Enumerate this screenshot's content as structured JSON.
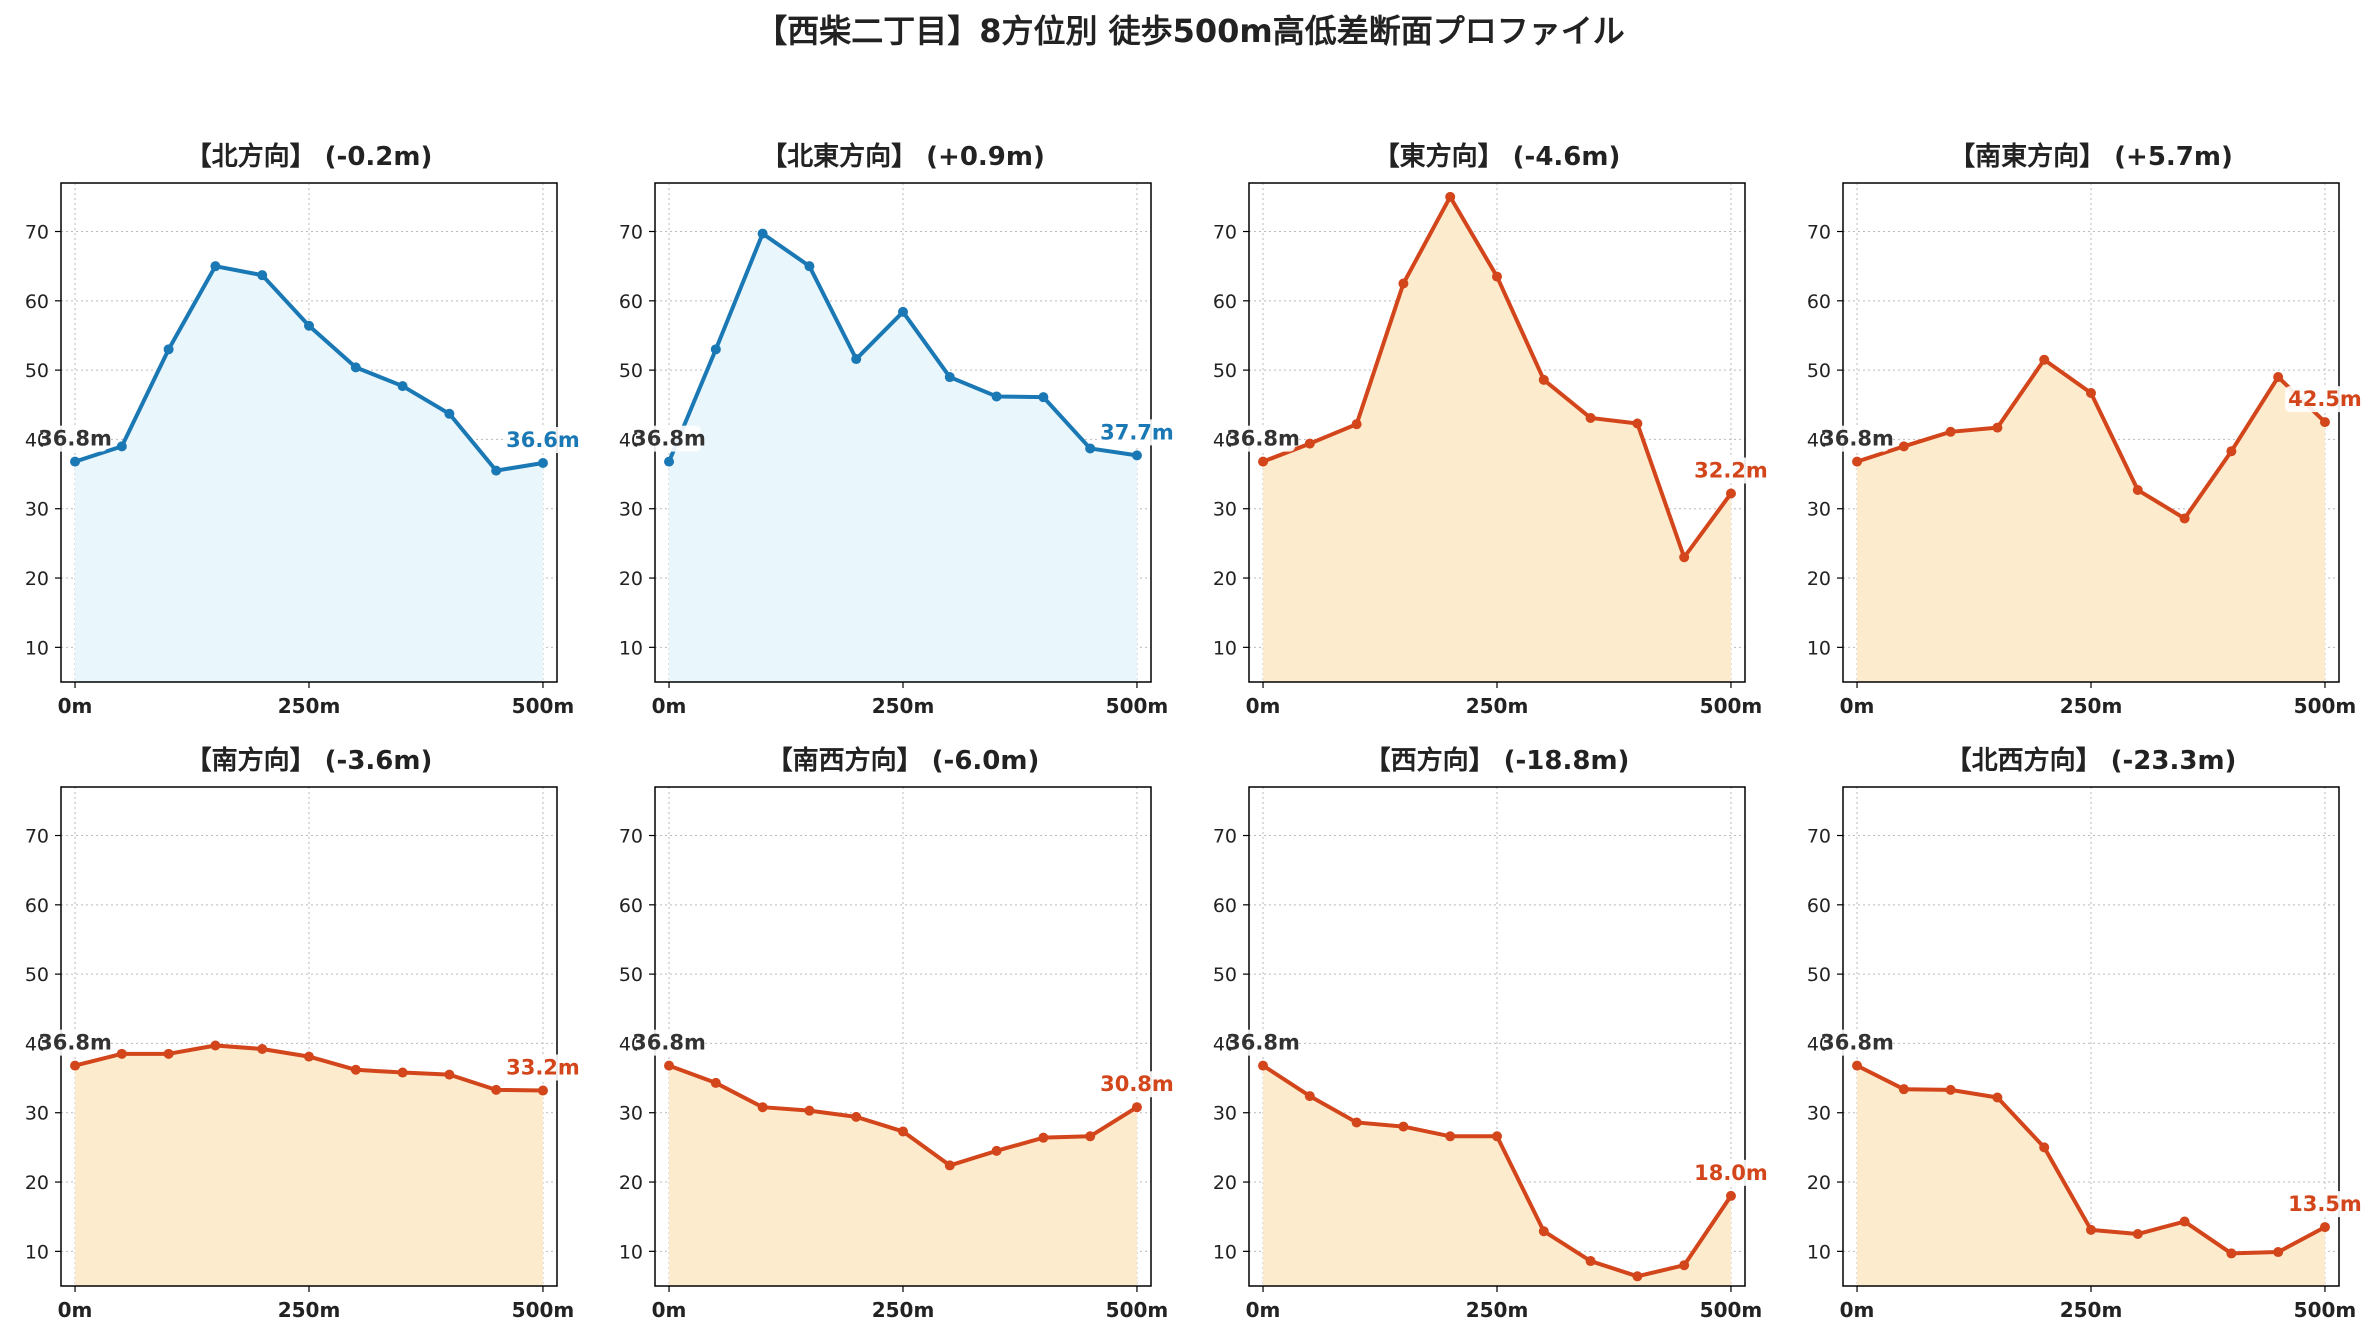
{
  "figure": {
    "title": "【西柴二丁目】8方位別 徒歩500m高低差断面プロファイル"
  },
  "colors": {
    "up_line": "#1a78b4",
    "up_fill": "#e9f6fb",
    "down_line": "#d3451a",
    "down_fill": "#fdebcd",
    "start_label": "#333333",
    "grid": "#bbbbbb",
    "axis": "#000000"
  },
  "chart_data": [
    {
      "type": "area",
      "title": "【北方向】 (-0.2m)",
      "trend": "up",
      "x": [
        0,
        50,
        100,
        150,
        200,
        250,
        300,
        350,
        400,
        450,
        500
      ],
      "y": [
        36.8,
        39.0,
        53.0,
        65.0,
        63.7,
        56.4,
        50.4,
        47.7,
        43.7,
        35.5,
        36.6
      ],
      "start_label": "36.8m",
      "end_label": "36.6m",
      "xticks": [
        "0m",
        "250m",
        "500m"
      ],
      "xtick_values": [
        0,
        250,
        500
      ],
      "yticks": [
        10,
        20,
        30,
        40,
        50,
        60,
        70
      ],
      "ylim": [
        5,
        77
      ],
      "xlim": [
        -15,
        515
      ],
      "grid": true
    },
    {
      "type": "area",
      "title": "【北東方向】 (+0.9m)",
      "trend": "up",
      "x": [
        0,
        50,
        100,
        150,
        200,
        250,
        300,
        350,
        400,
        450,
        500
      ],
      "y": [
        36.8,
        53.0,
        69.7,
        65.0,
        51.6,
        58.4,
        49.0,
        46.2,
        46.1,
        38.7,
        37.7
      ],
      "start_label": "36.8m",
      "end_label": "37.7m",
      "xticks": [
        "0m",
        "250m",
        "500m"
      ],
      "xtick_values": [
        0,
        250,
        500
      ],
      "yticks": [
        10,
        20,
        30,
        40,
        50,
        60,
        70
      ],
      "ylim": [
        5,
        77
      ],
      "xlim": [
        -15,
        515
      ],
      "grid": true
    },
    {
      "type": "area",
      "title": "【東方向】 (-4.6m)",
      "trend": "down",
      "x": [
        0,
        50,
        100,
        150,
        200,
        250,
        300,
        350,
        400,
        450,
        500
      ],
      "y": [
        36.8,
        39.4,
        42.2,
        62.5,
        75.0,
        63.5,
        48.6,
        43.1,
        42.3,
        23.0,
        32.2
      ],
      "start_label": "36.8m",
      "end_label": "32.2m",
      "xticks": [
        "0m",
        "250m",
        "500m"
      ],
      "xtick_values": [
        0,
        250,
        500
      ],
      "yticks": [
        10,
        20,
        30,
        40,
        50,
        60,
        70
      ],
      "ylim": [
        5,
        77
      ],
      "xlim": [
        -15,
        515
      ],
      "grid": true
    },
    {
      "type": "area",
      "title": "【南東方向】 (+5.7m)",
      "trend": "down",
      "x": [
        0,
        50,
        100,
        150,
        200,
        250,
        300,
        350,
        400,
        450,
        500
      ],
      "y": [
        36.8,
        39.0,
        41.1,
        41.7,
        51.5,
        46.7,
        32.7,
        28.6,
        38.3,
        49.0,
        42.5
      ],
      "start_label": "36.8m",
      "end_label": "42.5m",
      "xticks": [
        "0m",
        "250m",
        "500m"
      ],
      "xtick_values": [
        0,
        250,
        500
      ],
      "yticks": [
        10,
        20,
        30,
        40,
        50,
        60,
        70
      ],
      "ylim": [
        5,
        77
      ],
      "xlim": [
        -15,
        515
      ],
      "grid": true
    },
    {
      "type": "area",
      "title": "【南方向】 (-3.6m)",
      "trend": "down",
      "x": [
        0,
        50,
        100,
        150,
        200,
        250,
        300,
        350,
        400,
        450,
        500
      ],
      "y": [
        36.8,
        38.5,
        38.5,
        39.7,
        39.2,
        38.1,
        36.2,
        35.8,
        35.5,
        33.3,
        33.2
      ],
      "start_label": "36.8m",
      "end_label": "33.2m",
      "xticks": [
        "0m",
        "250m",
        "500m"
      ],
      "xtick_values": [
        0,
        250,
        500
      ],
      "yticks": [
        10,
        20,
        30,
        40,
        50,
        60,
        70
      ],
      "ylim": [
        5,
        77
      ],
      "xlim": [
        -15,
        515
      ],
      "grid": true
    },
    {
      "type": "area",
      "title": "【南西方向】 (-6.0m)",
      "trend": "down",
      "x": [
        0,
        50,
        100,
        150,
        200,
        250,
        300,
        350,
        400,
        450,
        500
      ],
      "y": [
        36.8,
        34.3,
        30.8,
        30.3,
        29.4,
        27.3,
        22.4,
        24.5,
        26.4,
        26.6,
        30.8
      ],
      "start_label": "36.8m",
      "end_label": "30.8m",
      "xticks": [
        "0m",
        "250m",
        "500m"
      ],
      "xtick_values": [
        0,
        250,
        500
      ],
      "yticks": [
        10,
        20,
        30,
        40,
        50,
        60,
        70
      ],
      "ylim": [
        5,
        77
      ],
      "xlim": [
        -15,
        515
      ],
      "grid": true
    },
    {
      "type": "area",
      "title": "【西方向】 (-18.8m)",
      "trend": "down",
      "x": [
        0,
        50,
        100,
        150,
        200,
        250,
        300,
        350,
        400,
        450,
        500
      ],
      "y": [
        36.8,
        32.4,
        28.6,
        28.0,
        26.6,
        26.6,
        12.9,
        8.6,
        6.4,
        8.0,
        18.0
      ],
      "start_label": "36.8m",
      "end_label": "18.0m",
      "xticks": [
        "0m",
        "250m",
        "500m"
      ],
      "xtick_values": [
        0,
        250,
        500
      ],
      "yticks": [
        10,
        20,
        30,
        40,
        50,
        60,
        70
      ],
      "ylim": [
        5,
        77
      ],
      "xlim": [
        -15,
        515
      ],
      "grid": true
    },
    {
      "type": "area",
      "title": "【北西方向】 (-23.3m)",
      "trend": "down",
      "x": [
        0,
        50,
        100,
        150,
        200,
        250,
        300,
        350,
        400,
        450,
        500
      ],
      "y": [
        36.8,
        33.4,
        33.3,
        32.2,
        25.0,
        13.1,
        12.5,
        14.3,
        9.7,
        9.9,
        13.5
      ],
      "start_label": "36.8m",
      "end_label": "13.5m",
      "xticks": [
        "0m",
        "250m",
        "500m"
      ],
      "xtick_values": [
        0,
        250,
        500
      ],
      "yticks": [
        10,
        20,
        30,
        40,
        50,
        60,
        70
      ],
      "ylim": [
        5,
        77
      ],
      "xlim": [
        -15,
        515
      ],
      "grid": true
    }
  ]
}
